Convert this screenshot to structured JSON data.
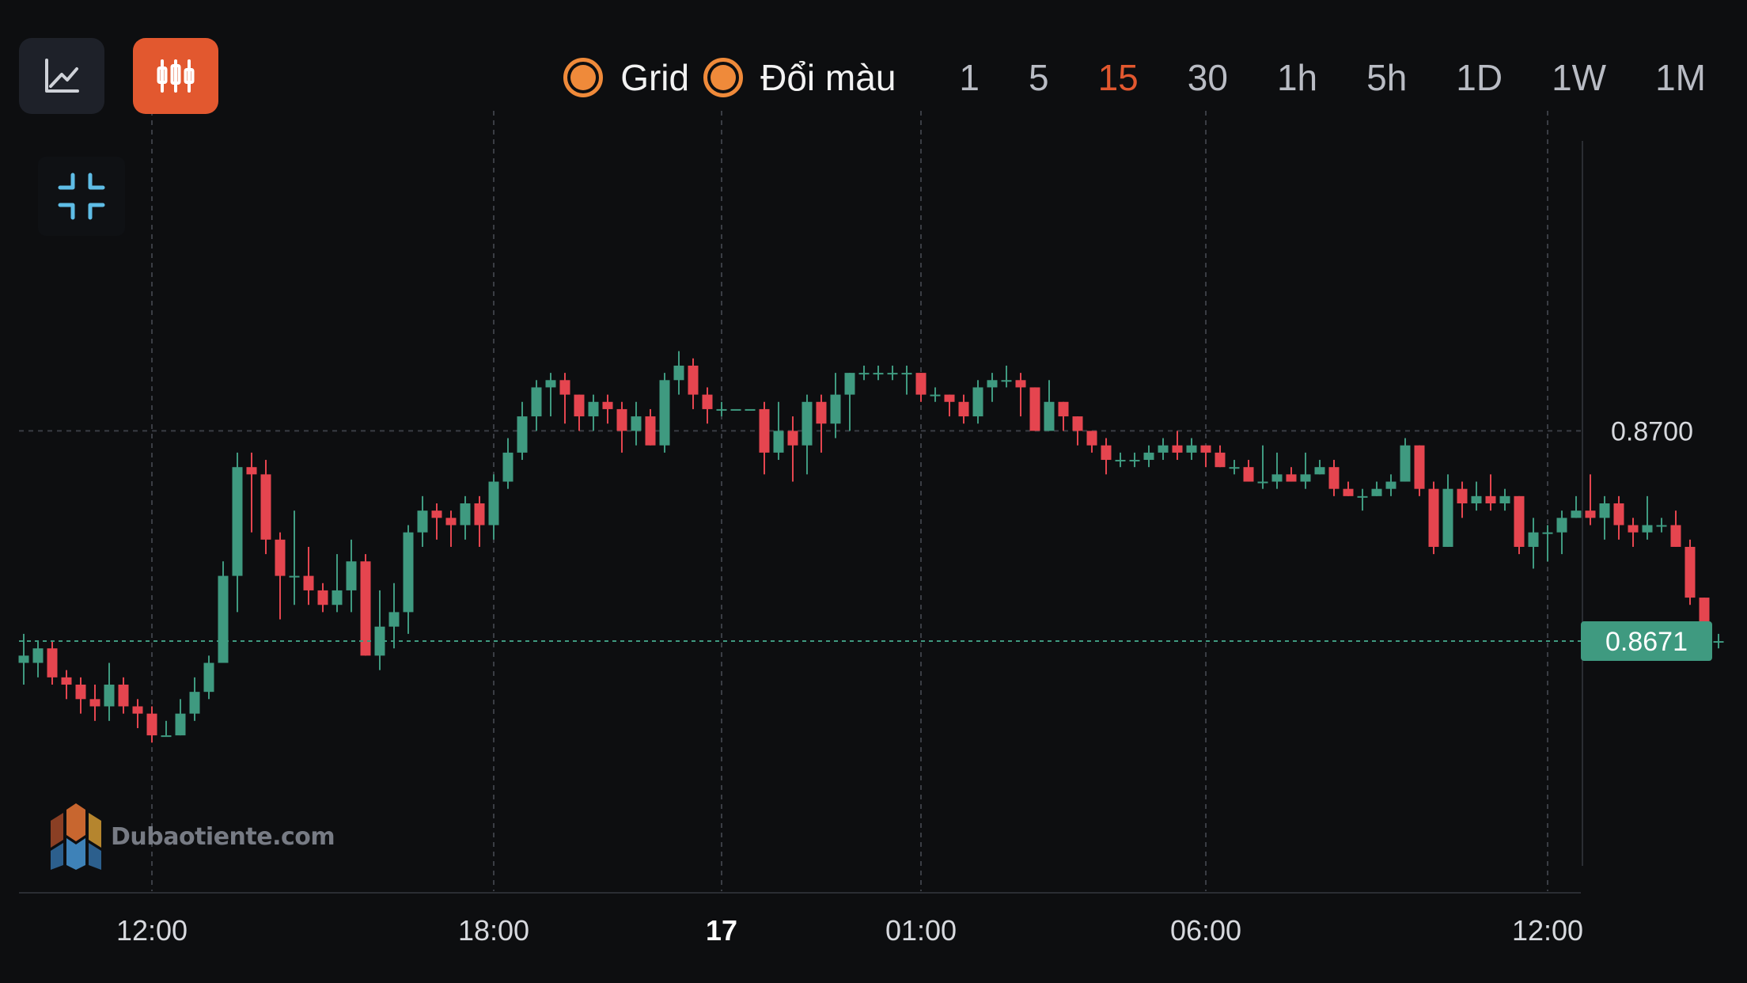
{
  "toolbar": {
    "line_mode_icon": "line-chart-icon",
    "candle_mode_icon": "candlestick-icon",
    "collapse_icon": "collapse-icon",
    "grid_label": "Grid",
    "color_label": "Đổi màu",
    "timeframes": [
      "1",
      "5",
      "15",
      "30",
      "1h",
      "5h",
      "1D",
      "1W",
      "1M"
    ],
    "active_timeframe": "15"
  },
  "watermark": {
    "text": "Dubaotiente.com"
  },
  "colors": {
    "up": "#3f9a80",
    "down": "#e5454f",
    "accent": "#e2582f",
    "toggle": "#ef8a3a",
    "price_tag": "#3f9a80"
  },
  "chart_data": {
    "type": "candlestick",
    "x_ticks": [
      "12:00",
      "18:00",
      "17",
      "01:00",
      "06:00",
      "12:00"
    ],
    "x_ticks_bold": [
      "17"
    ],
    "y_ticks": [
      "0.8700"
    ],
    "current_price": "0.8671",
    "grid": true,
    "ylim": [
      0.864,
      0.874
    ],
    "candles": [
      [
        0.8668,
        0.8669,
        0.8672,
        0.8665
      ],
      [
        0.8668,
        0.867,
        0.8671,
        0.8666
      ],
      [
        0.867,
        0.8666,
        0.8671,
        0.8665
      ],
      [
        0.8666,
        0.8665,
        0.8667,
        0.8663
      ],
      [
        0.8665,
        0.8663,
        0.8666,
        0.8661
      ],
      [
        0.8663,
        0.8662,
        0.8665,
        0.866
      ],
      [
        0.8662,
        0.8665,
        0.8668,
        0.866
      ],
      [
        0.8665,
        0.8662,
        0.8666,
        0.8661
      ],
      [
        0.8662,
        0.8661,
        0.8663,
        0.8659
      ],
      [
        0.8661,
        0.8658,
        0.8662,
        0.8657
      ],
      [
        0.8658,
        0.8658,
        0.866,
        0.8658
      ],
      [
        0.8658,
        0.8661,
        0.8663,
        0.8658
      ],
      [
        0.8661,
        0.8664,
        0.8666,
        0.866
      ],
      [
        0.8664,
        0.8668,
        0.8669,
        0.8663
      ],
      [
        0.8668,
        0.868,
        0.8682,
        0.8668
      ],
      [
        0.868,
        0.8695,
        0.8697,
        0.8675
      ],
      [
        0.8695,
        0.8694,
        0.8697,
        0.8686
      ],
      [
        0.8694,
        0.8685,
        0.8696,
        0.8683
      ],
      [
        0.8685,
        0.868,
        0.8686,
        0.8674
      ],
      [
        0.868,
        0.868,
        0.8689,
        0.8676
      ],
      [
        0.868,
        0.8678,
        0.8684,
        0.8676
      ],
      [
        0.8678,
        0.8676,
        0.8679,
        0.8675
      ],
      [
        0.8676,
        0.8678,
        0.8683,
        0.8675
      ],
      [
        0.8678,
        0.8682,
        0.8685,
        0.8675
      ],
      [
        0.8682,
        0.8669,
        0.8683,
        0.8669
      ],
      [
        0.8669,
        0.8673,
        0.8678,
        0.8667
      ],
      [
        0.8673,
        0.8675,
        0.8679,
        0.867
      ],
      [
        0.8675,
        0.8686,
        0.8687,
        0.8672
      ],
      [
        0.8686,
        0.8689,
        0.8691,
        0.8684
      ],
      [
        0.8689,
        0.8688,
        0.869,
        0.8685
      ],
      [
        0.8688,
        0.8687,
        0.8689,
        0.8684
      ],
      [
        0.8687,
        0.869,
        0.8691,
        0.8685
      ],
      [
        0.869,
        0.8687,
        0.8691,
        0.8684
      ],
      [
        0.8687,
        0.8693,
        0.8694,
        0.8685
      ],
      [
        0.8693,
        0.8697,
        0.8699,
        0.8692
      ],
      [
        0.8697,
        0.8702,
        0.8704,
        0.8696
      ],
      [
        0.8702,
        0.8706,
        0.8707,
        0.87
      ],
      [
        0.8706,
        0.8707,
        0.8708,
        0.8702
      ],
      [
        0.8707,
        0.8705,
        0.8708,
        0.8701
      ],
      [
        0.8705,
        0.8702,
        0.8705,
        0.87
      ],
      [
        0.8702,
        0.8704,
        0.8705,
        0.87
      ],
      [
        0.8704,
        0.8703,
        0.8705,
        0.8701
      ],
      [
        0.8703,
        0.87,
        0.8704,
        0.8697
      ],
      [
        0.87,
        0.8702,
        0.8704,
        0.8698
      ],
      [
        0.8702,
        0.8698,
        0.8703,
        0.8698
      ],
      [
        0.8698,
        0.8707,
        0.8708,
        0.8697
      ],
      [
        0.8707,
        0.8709,
        0.8711,
        0.8705
      ],
      [
        0.8709,
        0.8705,
        0.871,
        0.8703
      ],
      [
        0.8705,
        0.8703,
        0.8706,
        0.8701
      ],
      [
        0.8703,
        0.8703,
        0.8704,
        0.8702
      ],
      [
        0.8703,
        0.8703,
        0.8703,
        0.8703
      ],
      [
        0.8703,
        0.8703,
        0.8703,
        0.8703
      ],
      [
        0.8703,
        0.8697,
        0.8704,
        0.8694
      ],
      [
        0.8697,
        0.87,
        0.8704,
        0.8696
      ],
      [
        0.87,
        0.8698,
        0.8702,
        0.8693
      ],
      [
        0.8698,
        0.8704,
        0.8705,
        0.8694
      ],
      [
        0.8704,
        0.8701,
        0.8705,
        0.8697
      ],
      [
        0.8701,
        0.8705,
        0.8708,
        0.8699
      ],
      [
        0.8705,
        0.8708,
        0.8708,
        0.87
      ],
      [
        0.8708,
        0.8708,
        0.8709,
        0.8707
      ],
      [
        0.8708,
        0.8708,
        0.8709,
        0.8707
      ],
      [
        0.8708,
        0.8708,
        0.8709,
        0.8707
      ],
      [
        0.8708,
        0.8708,
        0.8709,
        0.8705
      ],
      [
        0.8708,
        0.8705,
        0.8708,
        0.8704
      ],
      [
        0.8705,
        0.8705,
        0.8706,
        0.8704
      ],
      [
        0.8705,
        0.8704,
        0.8705,
        0.8702
      ],
      [
        0.8704,
        0.8702,
        0.8705,
        0.8701
      ],
      [
        0.8702,
        0.8706,
        0.8707,
        0.8701
      ],
      [
        0.8706,
        0.8707,
        0.8708,
        0.8704
      ],
      [
        0.8707,
        0.8707,
        0.8709,
        0.8706
      ],
      [
        0.8707,
        0.8706,
        0.8708,
        0.8702
      ],
      [
        0.8706,
        0.87,
        0.8706,
        0.87
      ],
      [
        0.87,
        0.8704,
        0.8707,
        0.87
      ],
      [
        0.8704,
        0.8702,
        0.8704,
        0.87
      ],
      [
        0.8702,
        0.87,
        0.8702,
        0.8698
      ],
      [
        0.87,
        0.8698,
        0.87,
        0.8697
      ],
      [
        0.8698,
        0.8696,
        0.8699,
        0.8694
      ],
      [
        0.8696,
        0.8696,
        0.8697,
        0.8695
      ],
      [
        0.8696,
        0.8696,
        0.8697,
        0.8695
      ],
      [
        0.8696,
        0.8697,
        0.8698,
        0.8695
      ],
      [
        0.8697,
        0.8698,
        0.8699,
        0.8696
      ],
      [
        0.8698,
        0.8697,
        0.87,
        0.8696
      ],
      [
        0.8697,
        0.8698,
        0.8699,
        0.8696
      ],
      [
        0.8698,
        0.8697,
        0.8698,
        0.8695
      ],
      [
        0.8697,
        0.8695,
        0.8698,
        0.8695
      ],
      [
        0.8695,
        0.8695,
        0.8696,
        0.8694
      ],
      [
        0.8695,
        0.8693,
        0.8696,
        0.8693
      ],
      [
        0.8693,
        0.8693,
        0.8698,
        0.8692
      ],
      [
        0.8693,
        0.8694,
        0.8697,
        0.8692
      ],
      [
        0.8694,
        0.8693,
        0.8695,
        0.8693
      ],
      [
        0.8693,
        0.8694,
        0.8697,
        0.8692
      ],
      [
        0.8694,
        0.8695,
        0.8696,
        0.8694
      ],
      [
        0.8695,
        0.8692,
        0.8696,
        0.8691
      ],
      [
        0.8692,
        0.8691,
        0.8693,
        0.8691
      ],
      [
        0.8691,
        0.8691,
        0.8692,
        0.8689
      ],
      [
        0.8691,
        0.8692,
        0.8693,
        0.8691
      ],
      [
        0.8692,
        0.8693,
        0.8694,
        0.8691
      ],
      [
        0.8693,
        0.8698,
        0.8699,
        0.8693
      ],
      [
        0.8698,
        0.8692,
        0.8698,
        0.8691
      ],
      [
        0.8692,
        0.8684,
        0.8693,
        0.8683
      ],
      [
        0.8684,
        0.8692,
        0.8694,
        0.8684
      ],
      [
        0.8692,
        0.869,
        0.8693,
        0.8688
      ],
      [
        0.869,
        0.8691,
        0.8693,
        0.8689
      ],
      [
        0.8691,
        0.869,
        0.8694,
        0.8689
      ],
      [
        0.869,
        0.8691,
        0.8692,
        0.8689
      ],
      [
        0.8691,
        0.8684,
        0.8691,
        0.8683
      ],
      [
        0.8684,
        0.8686,
        0.8688,
        0.8681
      ],
      [
        0.8686,
        0.8686,
        0.8687,
        0.8682
      ],
      [
        0.8686,
        0.8688,
        0.8689,
        0.8683
      ],
      [
        0.8688,
        0.8689,
        0.8691,
        0.8688
      ],
      [
        0.8689,
        0.8688,
        0.8694,
        0.8687
      ],
      [
        0.8688,
        0.869,
        0.8691,
        0.8685
      ],
      [
        0.869,
        0.8687,
        0.8691,
        0.8685
      ],
      [
        0.8687,
        0.8686,
        0.8688,
        0.8684
      ],
      [
        0.8686,
        0.8687,
        0.8691,
        0.8685
      ],
      [
        0.8687,
        0.8687,
        0.8688,
        0.8686
      ],
      [
        0.8687,
        0.8684,
        0.8689,
        0.8684
      ],
      [
        0.8684,
        0.8677,
        0.8685,
        0.8676
      ],
      [
        0.8677,
        0.8671,
        0.8677,
        0.867
      ],
      [
        0.8671,
        0.8671,
        0.8672,
        0.867
      ]
    ]
  }
}
